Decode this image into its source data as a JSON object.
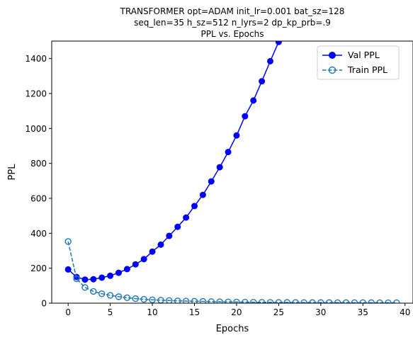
{
  "chart_data": {
    "type": "line",
    "title_lines": [
      "TRANSFORMER opt=ADAM init_lr=0.001 bat_sz=128",
      "seq_len=35 h_sz=512 n_lyrs=2 dp_kp_prb=.9",
      "PPL vs. Epochs"
    ],
    "xlabel": "Epochs",
    "ylabel": "PPL",
    "xlim": [
      -1.95,
      40.95
    ],
    "ylim": [
      0,
      1500
    ],
    "xticks": [
      0,
      5,
      10,
      15,
      20,
      25,
      30,
      35,
      40
    ],
    "yticks": [
      0,
      200,
      400,
      600,
      800,
      1000,
      1200,
      1400
    ],
    "grid": false,
    "legend_position": "top-right",
    "series": [
      {
        "name": "Val PPL",
        "color": "#0000ff",
        "style": "solid",
        "marker": "filled-circle",
        "x": [
          0,
          1,
          2,
          3,
          4,
          5,
          6,
          7,
          8,
          9,
          10,
          11,
          12,
          13,
          14,
          15,
          16,
          17,
          18,
          19,
          20,
          21,
          22,
          23,
          24,
          25
        ],
        "values": [
          193,
          150,
          135,
          137,
          146,
          157,
          174,
          195,
          222,
          252,
          295,
          335,
          385,
          437,
          490,
          556,
          620,
          697,
          778,
          865,
          960,
          1070,
          1160,
          1270,
          1385,
          1495
        ]
      },
      {
        "name": "Train PPL",
        "color": "#1f77b4",
        "style": "dashed",
        "marker": "open-circle",
        "x": [
          0,
          1,
          2,
          3,
          4,
          5,
          6,
          7,
          8,
          9,
          10,
          11,
          12,
          13,
          14,
          15,
          16,
          17,
          18,
          19,
          20,
          21,
          22,
          23,
          24,
          25,
          26,
          27,
          28,
          29,
          30,
          31,
          32,
          33,
          34,
          35,
          36,
          37,
          38,
          39
        ],
        "values": [
          353,
          140,
          90,
          67,
          54,
          45,
          37,
          31,
          26,
          22,
          19,
          17,
          15,
          13,
          12,
          11,
          10,
          9,
          8,
          7,
          6.5,
          6,
          5.5,
          5,
          4.5,
          4.2,
          4,
          3.7,
          3.5,
          3.3,
          3.1,
          3,
          2.9,
          2.8,
          2.7,
          2.6,
          2.5,
          2.4,
          2.3,
          2.2
        ]
      }
    ]
  }
}
